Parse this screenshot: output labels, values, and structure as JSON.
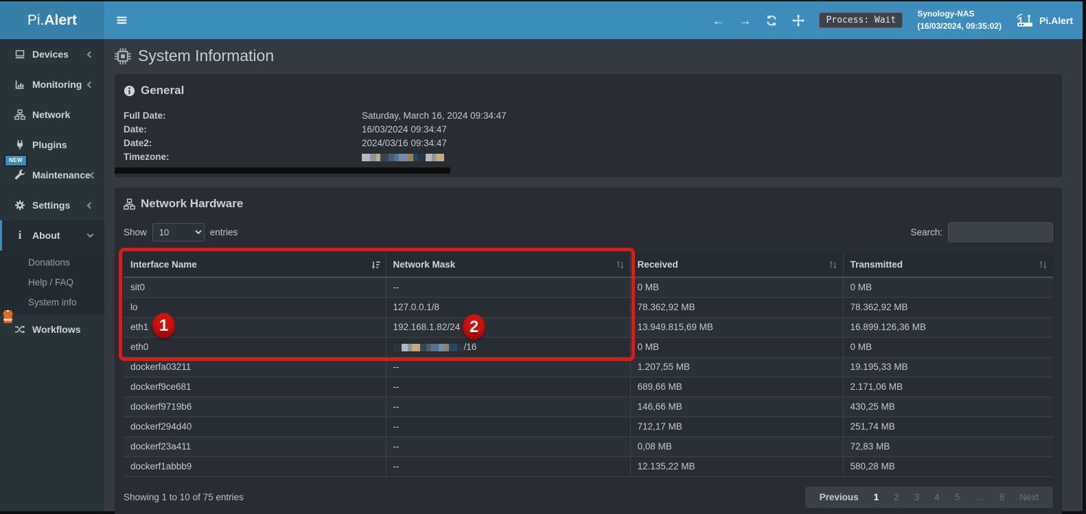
{
  "header": {
    "logo_prefix": "Pi.",
    "logo_bold": "Alert",
    "back_arrow": "←",
    "forward_arrow": "→",
    "process_badge": "Process: Wait",
    "host_name": "Synology-NAS",
    "host_time": "(16/03/2024, 09:35:02)",
    "brand": "Pi.Alert"
  },
  "colors": {
    "navbar": "#3c8dbc",
    "logo_bg": "#367fa9",
    "accent": "#3c8dbc",
    "annotation_red": "#de1a14"
  },
  "sidebar": {
    "items": [
      {
        "label": "Devices",
        "icon": "laptop",
        "chevron": "left"
      },
      {
        "label": "Monitoring",
        "icon": "chart",
        "chevron": "left"
      },
      {
        "label": "Network",
        "icon": "sitemap"
      },
      {
        "label": "Plugins",
        "icon": "plug"
      },
      {
        "label": "Maintenance",
        "icon": "wrench",
        "chevron": "left",
        "badge": "NEW"
      },
      {
        "label": "Settings",
        "icon": "gear",
        "chevron": "left"
      },
      {
        "label": "About",
        "icon": "info",
        "chevron": "down",
        "active": true,
        "submenu": [
          "Donations",
          "Help / FAQ",
          "System info"
        ]
      },
      {
        "label": "Workflows",
        "icon": "shuffle",
        "vest_badge": true
      }
    ]
  },
  "page_title": "System Information",
  "general": {
    "title": "General",
    "rows": [
      {
        "label": "Full Date:",
        "value": "Saturday, March 16, 2024 09:34:47"
      },
      {
        "label": "Date:",
        "value": "16/03/2024 09:34:47"
      },
      {
        "label": "Date2:",
        "value": "2024/03/16 09:34:47"
      },
      {
        "label": "Timezone:",
        "value": "",
        "redacted": true
      }
    ]
  },
  "network_hardware": {
    "title": "Network Hardware",
    "show_label": "Show",
    "show_value": "10",
    "entries_label": "entries",
    "search_label": "Search:",
    "search_value": "",
    "columns": [
      {
        "label": "Interface Name",
        "sort": "desc"
      },
      {
        "label": "Network Mask",
        "sort": "none"
      },
      {
        "label": "Received",
        "sort": "none"
      },
      {
        "label": "Transmitted",
        "sort": "none"
      }
    ],
    "rows": [
      {
        "iface": "sit0",
        "mask": "--",
        "received": "0 MB",
        "transmitted": "0 MB"
      },
      {
        "iface": "lo",
        "mask": "127.0.0.1/8",
        "received": "78.362,92 MB",
        "transmitted": "78.362,92 MB"
      },
      {
        "iface": "eth1",
        "mask": "192.168.1.82/24",
        "received": "13.949.815,69 MB",
        "transmitted": "16.899.126,36 MB"
      },
      {
        "iface": "eth0",
        "mask": "/16",
        "mask_redacted": true,
        "received": "0 MB",
        "transmitted": "0 MB"
      },
      {
        "iface": "dockerfa03211",
        "mask": "--",
        "received": "1.207,55 MB",
        "transmitted": "19.195,33 MB"
      },
      {
        "iface": "dockerf9ce681",
        "mask": "--",
        "received": "689,66 MB",
        "transmitted": "2.171,06 MB"
      },
      {
        "iface": "dockerf9719b6",
        "mask": "--",
        "received": "146,66 MB",
        "transmitted": "430,25 MB"
      },
      {
        "iface": "dockerf294d40",
        "mask": "--",
        "received": "712,17 MB",
        "transmitted": "251,74 MB"
      },
      {
        "iface": "dockerf23a411",
        "mask": "--",
        "received": "0,08 MB",
        "transmitted": "72,83 MB"
      },
      {
        "iface": "dockerf1abbb9",
        "mask": "--",
        "received": "12.135,22 MB",
        "transmitted": "580,28 MB"
      }
    ],
    "footer_info": "Showing 1 to 10 of 75 entries",
    "pagination": [
      {
        "label": "Previous",
        "state": "enabled"
      },
      {
        "label": "1",
        "state": "active"
      },
      {
        "label": "2",
        "state": "muted"
      },
      {
        "label": "3",
        "state": "muted"
      },
      {
        "label": "4",
        "state": "muted"
      },
      {
        "label": "5",
        "state": "muted"
      },
      {
        "label": "…",
        "state": "muted"
      },
      {
        "label": "8",
        "state": "muted"
      },
      {
        "label": "Next",
        "state": "muted"
      }
    ]
  },
  "annotations": {
    "circle1": "1",
    "circle2": "2"
  }
}
